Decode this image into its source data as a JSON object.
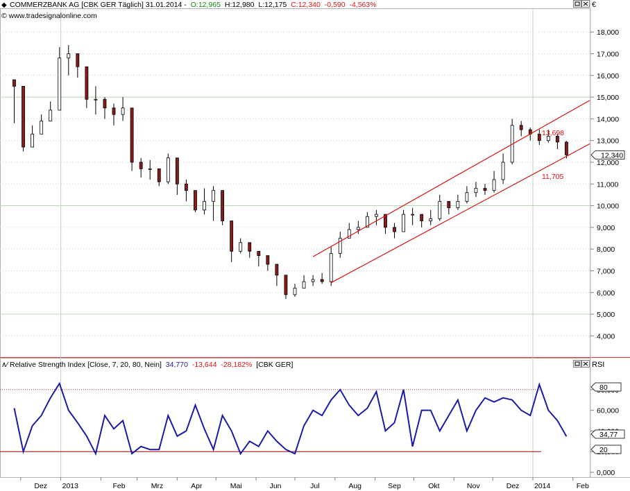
{
  "header": {
    "icon": "diamond-icon",
    "symbol_text": "COMMERZBANK AG [CBK GER  Täglich] 31.01.2014 -",
    "ohlc": {
      "open": "O:12,965",
      "high": "H:12,980",
      "low": "L:12,175",
      "close": "C:12,340",
      "change": "-0,590",
      "change_pct": "-4,563%"
    },
    "copyright": "© www.tradesignalonline.com"
  },
  "price_panel": {
    "currency_label": "€",
    "price_axis": [
      "18,000",
      "17,000",
      "16,000",
      "15,000",
      "14,000",
      "13,000",
      "12,000",
      "11,000",
      "10,000",
      "9,000",
      "8,000",
      "7,000",
      "6,000",
      "5,000",
      "4,000"
    ],
    "last_price_label": "12,340",
    "channel_upper_label": "13,698",
    "channel_lower_label": "11,705"
  },
  "rsi_panel": {
    "icon": "indicator-wave-icon",
    "title": "Relative Strength Index [Close, 7, 20, 80, Nein]",
    "value": "34,770",
    "change": "-13,644",
    "change_pct": "-28,182%",
    "symbol": "[CBK GER]",
    "axis_title": "RSI",
    "axis_ticks": [
      "80,000",
      "60,000",
      "40,000",
      "20,000",
      "0,000"
    ],
    "level_high_label": "80",
    "level_low_label": "20",
    "current_label": "34,77"
  },
  "x_axis": [
    "Dez",
    "2013",
    "Feb",
    "Mrz",
    "Apr",
    "Mai",
    "Jun",
    "Jul",
    "Aug",
    "Sep",
    "Okt",
    "Nov",
    "Dez",
    "2014",
    "Feb"
  ],
  "window_controls": {
    "restore_icon": "window-restore-icon",
    "close_icon": "window-close-icon"
  },
  "colors": {
    "up_candle": "#ffffff",
    "down_candle": "#8b1a1a",
    "channel": "#dd1111",
    "rsi_line": "#1a1aa8",
    "negative_text": "#dd1111",
    "positive_text": "#118811"
  },
  "chart_data": [
    {
      "type": "candlestick",
      "title": "COMMERZBANK AG [CBK GER  Täglich] 31.01.2014",
      "ylim": [
        3500,
        18900
      ],
      "dates": [
        "2012-11-26",
        "2012-12-03",
        "2012-12-10",
        "2012-12-17",
        "2012-12-24",
        "2012-12-31",
        "2013-01-07",
        "2013-01-14",
        "2013-01-21",
        "2013-01-28",
        "2013-02-04",
        "2013-02-11",
        "2013-02-18",
        "2013-02-25",
        "2013-03-04",
        "2013-03-11",
        "2013-03-18",
        "2013-03-25",
        "2013-04-01",
        "2013-04-08",
        "2013-04-15",
        "2013-04-22",
        "2013-04-29",
        "2013-05-06",
        "2013-05-13",
        "2013-05-20",
        "2013-05-27",
        "2013-06-03",
        "2013-06-10",
        "2013-06-17",
        "2013-06-24",
        "2013-07-01",
        "2013-07-08",
        "2013-07-15",
        "2013-07-22",
        "2013-07-29",
        "2013-08-05",
        "2013-08-12",
        "2013-08-19",
        "2013-08-26",
        "2013-09-02",
        "2013-09-09",
        "2013-09-16",
        "2013-09-23",
        "2013-09-30",
        "2013-10-07",
        "2013-10-14",
        "2013-10-21",
        "2013-10-28",
        "2013-11-04",
        "2013-11-11",
        "2013-11-18",
        "2013-11-25",
        "2013-12-02",
        "2013-12-09",
        "2013-12-16",
        "2013-12-23",
        "2013-12-30",
        "2014-01-06",
        "2014-01-13",
        "2014-01-20",
        "2014-01-27"
      ],
      "close": [
        15500,
        12700,
        13300,
        13900,
        14400,
        16800,
        17000,
        16400,
        14900,
        14900,
        14500,
        14200,
        14500,
        12000,
        11700,
        11700,
        11100,
        12200,
        11000,
        10700,
        9800,
        10200,
        10700,
        9300,
        7900,
        8300,
        7900,
        7700,
        7300,
        6800,
        5900,
        6200,
        6500,
        6600,
        6500,
        7800,
        8500,
        8900,
        9000,
        9500,
        9600,
        9000,
        8800,
        9600,
        9600,
        9300,
        9400,
        10200,
        9900,
        10200,
        10600,
        10800,
        10700,
        11200,
        12000,
        13700,
        13500,
        13300,
        13000,
        13200,
        12930,
        12340
      ],
      "high": [
        15800,
        13200,
        13700,
        14200,
        14800,
        17300,
        17400,
        16800,
        15300,
        15500,
        15000,
        14700,
        15000,
        12500,
        12200,
        12100,
        11700,
        12400,
        11400,
        11200,
        10500,
        10800,
        10900,
        9600,
        8400,
        8500,
        8100,
        7900,
        7500,
        7100,
        6200,
        6400,
        6800,
        6800,
        6900,
        8100,
        8800,
        9200,
        9300,
        9700,
        9800,
        9400,
        9200,
        9800,
        9900,
        9600,
        9800,
        10500,
        10200,
        10500,
        10900,
        11100,
        11000,
        11600,
        12400,
        14000,
        13900,
        13600,
        13500,
        13500,
        13300,
        12980
      ],
      "low": [
        13800,
        12500,
        12800,
        13400,
        13900,
        14400,
        16000,
        15900,
        14500,
        14200,
        14000,
        13700,
        13900,
        11600,
        11300,
        11200,
        10900,
        11000,
        10500,
        10200,
        9700,
        9600,
        9300,
        9100,
        7400,
        7800,
        7600,
        7200,
        7000,
        6300,
        5700,
        5800,
        6200,
        6300,
        6400,
        6300,
        7600,
        8500,
        8700,
        9000,
        9100,
        8700,
        8500,
        8900,
        9100,
        9000,
        9100,
        9300,
        9600,
        9800,
        10100,
        10400,
        10500,
        10600,
        11000,
        11900,
        13200,
        13000,
        12800,
        12900,
        12600,
        12175
      ],
      "channel_upper": {
        "start": [
          "2013-07-15",
          7650
        ],
        "end": [
          "2014-02-14",
          14850
        ],
        "label": 13698
      },
      "channel_lower": {
        "start": [
          "2013-07-29",
          6450
        ],
        "end": [
          "2014-02-14",
          12850
        ],
        "label": 11705
      },
      "last_close": 12340
    },
    {
      "type": "line",
      "title": "Relative Strength Index [Close, 7, 20, 80, Nein]",
      "ylim": [
        -2,
        100
      ],
      "levels": [
        20,
        80
      ],
      "series": [
        {
          "name": "RSI",
          "x": [
            "2012-11-26",
            "2012-12-03",
            "2012-12-10",
            "2012-12-17",
            "2012-12-24",
            "2012-12-31",
            "2013-01-07",
            "2013-01-14",
            "2013-01-21",
            "2013-01-28",
            "2013-02-04",
            "2013-02-11",
            "2013-02-18",
            "2013-02-25",
            "2013-03-04",
            "2013-03-11",
            "2013-03-18",
            "2013-03-25",
            "2013-04-01",
            "2013-04-08",
            "2013-04-15",
            "2013-04-22",
            "2013-04-29",
            "2013-05-06",
            "2013-05-13",
            "2013-05-20",
            "2013-05-27",
            "2013-06-03",
            "2013-06-10",
            "2013-06-17",
            "2013-06-24",
            "2013-07-01",
            "2013-07-08",
            "2013-07-15",
            "2013-07-22",
            "2013-07-29",
            "2013-08-05",
            "2013-08-12",
            "2013-08-19",
            "2013-08-26",
            "2013-09-02",
            "2013-09-09",
            "2013-09-16",
            "2013-09-23",
            "2013-09-30",
            "2013-10-07",
            "2013-10-14",
            "2013-10-21",
            "2013-10-28",
            "2013-11-04",
            "2013-11-11",
            "2013-11-18",
            "2013-11-25",
            "2013-12-02",
            "2013-12-09",
            "2013-12-16",
            "2013-12-23",
            "2013-12-30",
            "2014-01-06",
            "2014-01-13",
            "2014-01-20",
            "2014-01-27"
          ],
          "values": [
            62,
            20,
            45,
            55,
            72,
            86,
            60,
            48,
            35,
            18,
            55,
            42,
            50,
            18,
            25,
            22,
            22,
            55,
            35,
            40,
            65,
            42,
            22,
            55,
            40,
            18,
            30,
            25,
            40,
            30,
            22,
            18,
            45,
            60,
            55,
            70,
            80,
            65,
            55,
            62,
            78,
            40,
            48,
            80,
            25,
            60,
            60,
            40,
            55,
            70,
            40,
            60,
            72,
            68,
            72,
            70,
            60,
            55,
            85,
            60,
            50,
            34.77
          ]
        }
      ]
    }
  ]
}
